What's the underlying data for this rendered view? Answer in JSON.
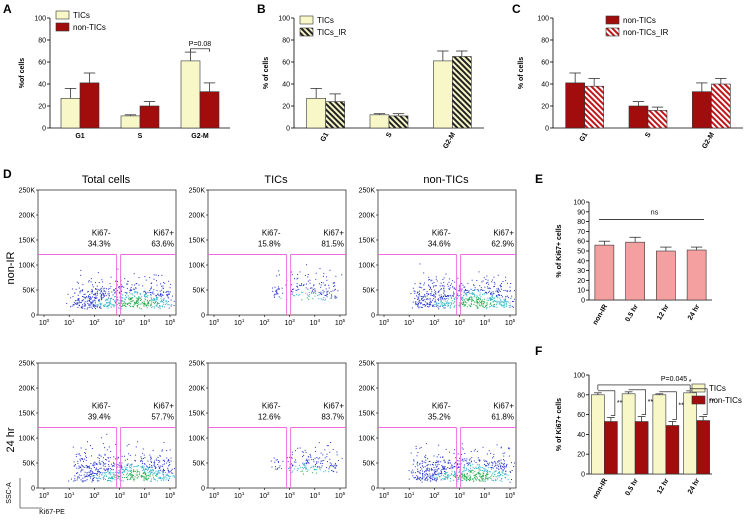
{
  "colors": {
    "tics": "#f7f7c8",
    "non_tics": "#a10d0d",
    "ki67_bar": "#f5a0a0",
    "gate": "#f06adf",
    "axis": "#000000"
  },
  "panel_letters": [
    "A",
    "B",
    "C",
    "D",
    "E",
    "F"
  ],
  "chart_data": [
    {
      "id": "A",
      "type": "bar",
      "ylabel": "%of cells",
      "ylim": [
        0,
        100
      ],
      "yticks": [
        "0",
        "20",
        "40",
        "60",
        "80",
        "100"
      ],
      "categories": [
        "G1",
        "S",
        "G2-M"
      ],
      "series": [
        {
          "name": "TICs",
          "fill": "#f7f7c8",
          "pattern": "solid",
          "values": [
            27,
            11,
            61
          ],
          "errors": [
            9,
            1,
            8
          ]
        },
        {
          "name": "non-TICs",
          "fill": "#a10d0d",
          "pattern": "solid",
          "values": [
            41,
            20,
            33
          ],
          "errors": [
            9,
            4,
            8
          ]
        }
      ],
      "annotation": "P=0.08"
    },
    {
      "id": "B",
      "type": "bar",
      "ylabel": "% of cells",
      "ylim": [
        0,
        100
      ],
      "yticks": [
        "0",
        "20",
        "40",
        "60",
        "80",
        "100"
      ],
      "categories": [
        "G1",
        "S",
        "G2-M"
      ],
      "series": [
        {
          "name": "TICs",
          "fill": "#f7f7c8",
          "pattern": "solid",
          "values": [
            27,
            12,
            61
          ],
          "errors": [
            9,
            1,
            9
          ]
        },
        {
          "name": "TICs_IR",
          "fill": "#f7f7c8",
          "pattern": "hatch",
          "values": [
            24,
            11,
            65
          ],
          "errors": [
            7,
            2,
            5
          ]
        }
      ]
    },
    {
      "id": "C",
      "type": "bar",
      "ylabel": "% of cells",
      "ylim": [
        0,
        100
      ],
      "yticks": [
        "0",
        "20",
        "40",
        "60",
        "80",
        "100"
      ],
      "categories": [
        "G1",
        "S",
        "G2-M"
      ],
      "series": [
        {
          "name": "non-TICs",
          "fill": "#a10d0d",
          "pattern": "solid",
          "values": [
            41,
            20,
            33
          ],
          "errors": [
            9,
            4,
            8
          ]
        },
        {
          "name": "non-TICs_IR",
          "fill": "#a10d0d",
          "pattern": "hatch-red",
          "values": [
            38,
            16,
            40
          ],
          "errors": [
            7,
            3,
            5
          ]
        }
      ]
    },
    {
      "id": "E",
      "type": "bar",
      "ylabel": "% of Ki67+ cells",
      "ylim": [
        0,
        100
      ],
      "yticks": [
        "0",
        "10",
        "20",
        "30",
        "40",
        "50",
        "60",
        "70",
        "80",
        "90",
        "100"
      ],
      "categories": [
        "non-IR",
        "0.5 hr",
        "12 hr",
        "24 hr"
      ],
      "series": [
        {
          "fill": "#f5a0a0",
          "pattern": "solid",
          "values": [
            56,
            59,
            50,
            51
          ],
          "errors": [
            4,
            5,
            4,
            3
          ]
        }
      ],
      "annotation": "ns"
    },
    {
      "id": "F",
      "type": "bar",
      "ylabel": "% of Ki67+ cells",
      "ylim": [
        0,
        100
      ],
      "yticks": [
        "0",
        "20",
        "40",
        "60",
        "80",
        "100"
      ],
      "categories": [
        "non-IR",
        "0.5 hr",
        "12 hr",
        "24 hr"
      ],
      "series": [
        {
          "name": "TICs",
          "fill": "#f7f7c8",
          "pattern": "solid",
          "values": [
            80,
            81,
            80,
            82
          ],
          "errors": [
            2,
            2,
            1,
            2
          ]
        },
        {
          "name": "non-TICs",
          "fill": "#a10d0d",
          "pattern": "solid",
          "values": [
            53,
            53,
            49,
            54
          ],
          "errors": [
            4,
            5,
            4,
            4
          ]
        }
      ],
      "sig_labels": [
        "**",
        "**",
        "**",
        "**"
      ],
      "annotation": "P=0.045",
      "annotation_star": "*"
    }
  ],
  "flow": {
    "column_titles": [
      "Total cells",
      "TICs",
      "non-TICs"
    ],
    "row_labels": [
      "non-IR",
      "24 hr"
    ],
    "yticks": [
      "0",
      "50K",
      "100K",
      "150K",
      "200K",
      "250K"
    ],
    "xticks": [
      "10^0",
      "10^1",
      "10^2",
      "10^3",
      "10^4",
      "10^5"
    ],
    "xlabel": "Ki67-PE",
    "ylabel": "SSC-A",
    "gate_neg_label": "Ki67-",
    "gate_pos_label": "Ki67+",
    "plots": [
      {
        "row": 0,
        "col": 0,
        "neg": "34.3%",
        "pos": "63.6%",
        "density": "high"
      },
      {
        "row": 0,
        "col": 1,
        "neg": "15.8%",
        "pos": "81.5%",
        "density": "low"
      },
      {
        "row": 0,
        "col": 2,
        "neg": "34.6%",
        "pos": "62.9%",
        "density": "high"
      },
      {
        "row": 1,
        "col": 0,
        "neg": "39.4%",
        "pos": "57.7%",
        "density": "high"
      },
      {
        "row": 1,
        "col": 1,
        "neg": "12.6%",
        "pos": "83.7%",
        "density": "low"
      },
      {
        "row": 1,
        "col": 2,
        "neg": "35.2%",
        "pos": "61.8%",
        "density": "high"
      }
    ]
  }
}
